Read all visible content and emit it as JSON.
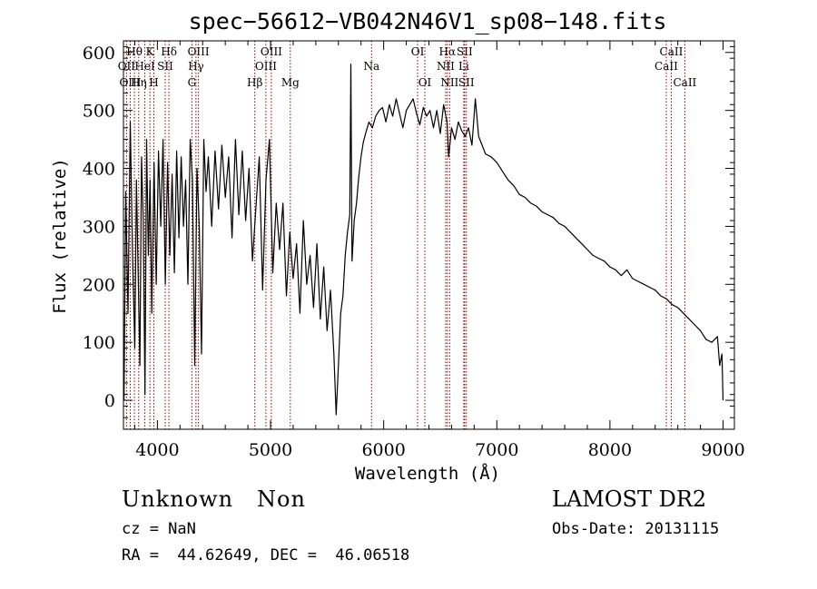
{
  "chart_data": {
    "type": "line",
    "title": "spec−56612−VB042N46V1_sp08−148.fits",
    "xlabel": "Wavelength (Å)",
    "ylabel": "Flux (relative)",
    "xlim": [
      3700,
      9100
    ],
    "ylim": [
      -50,
      620
    ],
    "xticks": [
      4000,
      5000,
      6000,
      7000,
      8000,
      9000
    ],
    "yticks": [
      0,
      100,
      200,
      300,
      400,
      500,
      600
    ],
    "grid": false,
    "line_color": "#000000",
    "marker_color": "#990000",
    "series": [
      {
        "x": [
          3705,
          3720,
          3740,
          3760,
          3780,
          3800,
          3815,
          3830,
          3845,
          3860,
          3875,
          3890,
          3905,
          3920,
          3935,
          3950,
          3970,
          3990,
          4010,
          4030,
          4050,
          4070,
          4090,
          4110,
          4130,
          4150,
          4170,
          4190,
          4210,
          4230,
          4250,
          4270,
          4290,
          4310,
          4330,
          4350,
          4370,
          4390,
          4410,
          4430,
          4450,
          4480,
          4510,
          4540,
          4570,
          4600,
          4630,
          4660,
          4690,
          4720,
          4750,
          4780,
          4810,
          4840,
          4870,
          4900,
          4930,
          4960,
          4990,
          5020,
          5050,
          5080,
          5110,
          5140,
          5170,
          5200,
          5230,
          5260,
          5290,
          5320,
          5350,
          5380,
          5410,
          5440,
          5470,
          5500,
          5530,
          5560,
          5580,
          5600,
          5620,
          5640,
          5660,
          5680,
          5700,
          5710,
          5720,
          5740,
          5760,
          5780,
          5800,
          5820,
          5840,
          5870,
          5900,
          5930,
          5960,
          5990,
          6020,
          6050,
          6080,
          6110,
          6140,
          6170,
          6200,
          6230,
          6260,
          6290,
          6320,
          6350,
          6380,
          6410,
          6440,
          6470,
          6500,
          6530,
          6560,
          6575,
          6600,
          6630,
          6660,
          6690,
          6720,
          6750,
          6780,
          6810,
          6840,
          6870,
          6900,
          6950,
          7000,
          7050,
          7100,
          7150,
          7200,
          7250,
          7300,
          7350,
          7400,
          7450,
          7500,
          7550,
          7600,
          7650,
          7700,
          7750,
          7800,
          7850,
          7900,
          7950,
          8000,
          8050,
          8100,
          8150,
          8200,
          8250,
          8300,
          8350,
          8400,
          8450,
          8500,
          8550,
          8600,
          8650,
          8700,
          8750,
          8800,
          8850,
          8900,
          8950,
          8970,
          8990,
          9000
        ],
        "y": [
          0,
          360,
          150,
          480,
          250,
          90,
          380,
          220,
          60,
          420,
          310,
          10,
          450,
          250,
          380,
          150,
          410,
          200,
          430,
          300,
          450,
          200,
          410,
          250,
          390,
          220,
          430,
          280,
          420,
          300,
          380,
          200,
          450,
          380,
          60,
          400,
          300,
          80,
          450,
          360,
          420,
          300,
          430,
          330,
          440,
          350,
          420,
          280,
          450,
          320,
          430,
          310,
          400,
          240,
          330,
          420,
          190,
          380,
          450,
          220,
          340,
          260,
          340,
          180,
          290,
          210,
          270,
          150,
          310,
          200,
          250,
          160,
          270,
          140,
          230,
          120,
          190,
          80,
          -25,
          60,
          150,
          180,
          250,
          290,
          320,
          580,
          240,
          310,
          340,
          385,
          420,
          445,
          460,
          480,
          470,
          490,
          500,
          505,
          480,
          510,
          490,
          520,
          495,
          470,
          500,
          510,
          520,
          495,
          475,
          505,
          490,
          500,
          470,
          500,
          460,
          510,
          480,
          420,
          470,
          450,
          480,
          465,
          455,
          470,
          440,
          520,
          455,
          440,
          425,
          420,
          410,
          395,
          380,
          370,
          355,
          350,
          340,
          335,
          325,
          320,
          315,
          305,
          300,
          290,
          280,
          270,
          260,
          250,
          245,
          240,
          230,
          225,
          215,
          225,
          210,
          205,
          200,
          195,
          190,
          180,
          175,
          165,
          160,
          150,
          140,
          130,
          120,
          105,
          100,
          110,
          60,
          80,
          0
        ]
      }
    ],
    "line_markers": [
      {
        "label": "Hθ",
        "x": 3797,
        "row": 1
      },
      {
        "label": "Hη",
        "x": 3835,
        "row": 3
      },
      {
        "label": "HeI",
        "x": 3889,
        "row": 2
      },
      {
        "label": "K",
        "x": 3934,
        "row": 1
      },
      {
        "label": "H",
        "x": 3969,
        "row": 3
      },
      {
        "label": "SII",
        "x": 4069,
        "row": 2
      },
      {
        "label": "Hδ",
        "x": 4102,
        "row": 1
      },
      {
        "label": "OII",
        "x": 3727,
        "row": 2
      },
      {
        "label": "OIII",
        "x": 3760,
        "row": 3
      },
      {
        "label": "OIII",
        "x": 4363,
        "row": 1
      },
      {
        "label": "Hγ",
        "x": 4341,
        "row": 2
      },
      {
        "label": "G",
        "x": 4305,
        "row": 3
      },
      {
        "label": "Hβ",
        "x": 4861,
        "row": 3
      },
      {
        "label": "OIII",
        "x": 5007,
        "row": 1
      },
      {
        "label": "OIII",
        "x": 4959,
        "row": 2
      },
      {
        "label": "Mg",
        "x": 5175,
        "row": 3
      },
      {
        "label": "Na",
        "x": 5893,
        "row": 2
      },
      {
        "label": "OI",
        "x": 6300,
        "row": 1
      },
      {
        "label": "OI",
        "x": 6364,
        "row": 3
      },
      {
        "label": "Hα",
        "x": 6563,
        "row": 1
      },
      {
        "label": "NII",
        "x": 6548,
        "row": 2
      },
      {
        "label": "NII",
        "x": 6583,
        "row": 3
      },
      {
        "label": "SII",
        "x": 6716,
        "row": 1
      },
      {
        "label": "Li",
        "x": 6708,
        "row": 2
      },
      {
        "label": "SII",
        "x": 6731,
        "row": 3
      },
      {
        "label": "CaII",
        "x": 8542,
        "row": 1
      },
      {
        "label": "CaII",
        "x": 8498,
        "row": 2
      },
      {
        "label": "CaII",
        "x": 8662,
        "row": 3
      }
    ]
  },
  "info": {
    "object": "Unknown   Non",
    "survey": "LAMOST DR2",
    "cz": "cz = NaN",
    "obs_date": "Obs-Date: 20131115",
    "radec": "RA =  44.62649, DEC =  46.06518"
  }
}
